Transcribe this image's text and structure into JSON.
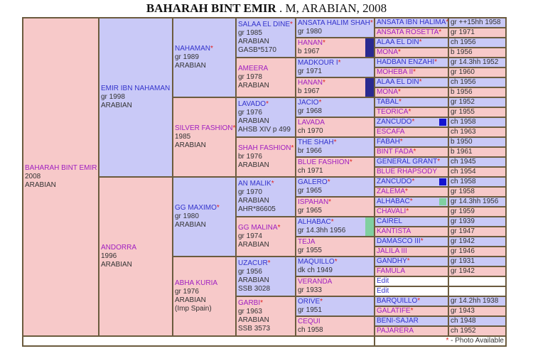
{
  "title": {
    "name": "BAHARAH BINT EMIR",
    "details": ". M, ARABIAN, 2008"
  },
  "footer": {
    "star": "*",
    "legend": " - Photo Available"
  },
  "colors": {
    "male_bg": "#c9c9f7",
    "female_bg": "#f7c9c9",
    "male_name": "#3333cc",
    "female_name": "#a020c0",
    "star": "#e02020",
    "border": "#6b5b3e"
  },
  "gen1": [
    {
      "name": "BAHARAH BINT EMIR",
      "star": false,
      "sex": "f",
      "lines": [
        "2008",
        "ARABIAN"
      ]
    }
  ],
  "gen2": [
    {
      "name": "EMIR IBN NAHAMAN",
      "star": false,
      "sex": "m",
      "lines": [
        "gr 1998",
        "ARABIAN"
      ]
    },
    {
      "name": "ANDORRA",
      "star": false,
      "sex": "f",
      "lines": [
        "1996",
        "ARABIAN"
      ]
    }
  ],
  "gen3": [
    {
      "name": "NAHAMAN",
      "star": true,
      "sex": "m",
      "lines": [
        "gr 1989",
        "ARABIAN"
      ]
    },
    {
      "name": "SILVER FASHION",
      "star": true,
      "sex": "f",
      "lines": [
        "1985",
        "ARABIAN"
      ]
    },
    {
      "name": "GG MAXIMO",
      "star": true,
      "sex": "m",
      "lines": [
        "gr 1980",
        "ARABIAN"
      ]
    },
    {
      "name": "ABHA KURIA",
      "star": false,
      "sex": "f",
      "lines": [
        "gr 1976",
        "ARABIAN",
        "(Imp Spain)"
      ]
    }
  ],
  "gen4": [
    {
      "name": "SALAA EL DINE",
      "star": true,
      "sex": "m",
      "lines": [
        "gr 1985",
        "ARABIAN",
        "GASB*5170"
      ]
    },
    {
      "name": "AMEERA",
      "star": false,
      "sex": "f",
      "lines": [
        "gr 1978",
        "ARABIAN"
      ]
    },
    {
      "name": "LAVADO",
      "star": true,
      "sex": "m",
      "lines": [
        "gr 1976",
        "ARABIAN",
        "AHSB XIV p 499"
      ]
    },
    {
      "name": "SHAH FASHION",
      "star": true,
      "sex": "f",
      "lines": [
        "br 1976",
        "ARABIAN"
      ]
    },
    {
      "name": "AN MALIK",
      "star": true,
      "sex": "m",
      "lines": [
        "gr 1970",
        "ARABIAN",
        "AHR*86605"
      ]
    },
    {
      "name": "GG MALINA",
      "star": true,
      "sex": "f",
      "lines": [
        "gr 1974",
        "ARABIAN"
      ]
    },
    {
      "name": "UZACUR",
      "star": true,
      "sex": "m",
      "lines": [
        "gr 1956",
        "ARABIAN",
        "SSB 3028"
      ]
    },
    {
      "name": "GARBI",
      "star": true,
      "sex": "f",
      "lines": [
        "gr 1963",
        "ARABIAN",
        "SSB 3573"
      ]
    }
  ],
  "gen5": [
    {
      "name": "ANSATA HALIM SHAH",
      "star": true,
      "sex": "m",
      "lines": [
        "gr 1980"
      ]
    },
    {
      "name": "HANAN",
      "star": true,
      "sex": "f",
      "lines": [
        "b 1967"
      ],
      "swatch": "#2a2a90"
    },
    {
      "name": "MADKOUR I",
      "star": true,
      "sex": "m",
      "lines": [
        "gr 1971"
      ]
    },
    {
      "name": "HANAN",
      "star": true,
      "sex": "f",
      "lines": [
        "b 1967"
      ],
      "swatch": "#2a2a90"
    },
    {
      "name": "JACIO",
      "star": true,
      "sex": "m",
      "lines": [
        "gr 1968"
      ]
    },
    {
      "name": "LAVADA",
      "star": false,
      "sex": "f",
      "lines": [
        "ch 1970"
      ]
    },
    {
      "name": "THE SHAH",
      "star": true,
      "sex": "m",
      "lines": [
        "br 1966"
      ]
    },
    {
      "name": "BLUE FASHION",
      "star": true,
      "sex": "f",
      "lines": [
        "ch 1971"
      ]
    },
    {
      "name": "GALERO",
      "star": true,
      "sex": "m",
      "lines": [
        "gr 1965"
      ]
    },
    {
      "name": "ISPAHAN",
      "star": true,
      "sex": "f",
      "lines": [
        "gr 1965"
      ]
    },
    {
      "name": "ALHABAC",
      "star": true,
      "sex": "m",
      "lines": [
        "gr 14.3hh 1956"
      ],
      "swatch": "#80d0a0"
    },
    {
      "name": "TEJA",
      "star": false,
      "sex": "f",
      "lines": [
        "gr 1955"
      ]
    },
    {
      "name": "MAQUILLO",
      "star": true,
      "sex": "m",
      "lines": [
        "dk ch 1949"
      ]
    },
    {
      "name": "VERANDA",
      "star": false,
      "sex": "f",
      "lines": [
        "gr 1933"
      ]
    },
    {
      "name": "ORIVE",
      "star": true,
      "sex": "m",
      "lines": [
        "gr 1951"
      ]
    },
    {
      "name": "CEQUI",
      "star": false,
      "sex": "f",
      "lines": [
        "ch 1958"
      ]
    }
  ],
  "gen6": [
    {
      "name": "ANSATA IBN HALIMA",
      "star": true,
      "sex": "m",
      "info": "gr ++15hh 1958"
    },
    {
      "name": "ANSATA ROSETTA",
      "star": true,
      "sex": "f",
      "info": "gr 1971"
    },
    {
      "name": "ALAA EL DIN",
      "star": true,
      "sex": "m",
      "info": "ch 1956"
    },
    {
      "name": "MONA",
      "star": true,
      "sex": "f",
      "info": "b 1956"
    },
    {
      "name": "HADBAN ENZAHI",
      "star": true,
      "sex": "m",
      "info": "gr 14.3hh 1952"
    },
    {
      "name": "MOHEBA II",
      "star": true,
      "sex": "f",
      "info": "gr 1960"
    },
    {
      "name": "ALAA EL DIN",
      "star": true,
      "sex": "m",
      "info": "ch 1956"
    },
    {
      "name": "MONA",
      "star": true,
      "sex": "f",
      "info": "b 1956"
    },
    {
      "name": "TABAL",
      "star": true,
      "sex": "m",
      "info": "gr 1952"
    },
    {
      "name": "TEORICA",
      "star": true,
      "sex": "f",
      "info": "gr 1955"
    },
    {
      "name": "ZANCUDO",
      "star": true,
      "sex": "m",
      "info": "ch 1958",
      "swatch": "#1414d0"
    },
    {
      "name": "ESCAFA",
      "star": false,
      "sex": "f",
      "info": "ch 1963"
    },
    {
      "name": "FABAH",
      "star": true,
      "sex": "m",
      "info": "b 1950"
    },
    {
      "name": "BINT FADA",
      "star": true,
      "sex": "f",
      "info": "b 1961"
    },
    {
      "name": "GENERAL GRANT",
      "star": true,
      "sex": "m",
      "info": "ch 1945"
    },
    {
      "name": "BLUE RHAPSODY",
      "star": false,
      "sex": "f",
      "info": "ch 1954"
    },
    {
      "name": "ZANCUDO",
      "star": true,
      "sex": "m",
      "info": "ch 1958",
      "swatch": "#1414d0"
    },
    {
      "name": "ZALEMA",
      "star": true,
      "sex": "f",
      "info": "gr 1958"
    },
    {
      "name": "ALHABAC",
      "star": true,
      "sex": "m",
      "info": "gr 14.3hh 1956",
      "swatch": "#80d0a0"
    },
    {
      "name": "CHAVALI",
      "star": true,
      "sex": "f",
      "info": "gr 1959"
    },
    {
      "name": "CAIREL",
      "star": false,
      "sex": "m",
      "info": "gr 1939"
    },
    {
      "name": "KANTISTA",
      "star": false,
      "sex": "f",
      "info": "gr 1947"
    },
    {
      "name": "DAMASCO III",
      "star": true,
      "sex": "m",
      "info": "gr 1942"
    },
    {
      "name": "JALILA III",
      "star": false,
      "sex": "f",
      "info": "gr 1946"
    },
    {
      "name": "GANDHY",
      "star": true,
      "sex": "m",
      "info": "gr 1931"
    },
    {
      "name": "FAMULA",
      "star": false,
      "sex": "f",
      "info": "gr 1942"
    },
    {
      "name": "Edit",
      "star": false,
      "sex": "w",
      "info": ""
    },
    {
      "name": "Edit",
      "star": false,
      "sex": "w",
      "info": ""
    },
    {
      "name": "BARQUILLO",
      "star": true,
      "sex": "m",
      "info": "gr 14.2hh 1938"
    },
    {
      "name": "GALATIFE",
      "star": true,
      "sex": "f",
      "info": "gr 1943"
    },
    {
      "name": "BENI-SAJAR",
      "star": false,
      "sex": "m",
      "info": "ch 1948"
    },
    {
      "name": "PAJARERA",
      "star": false,
      "sex": "f",
      "info": "ch 1952"
    }
  ]
}
